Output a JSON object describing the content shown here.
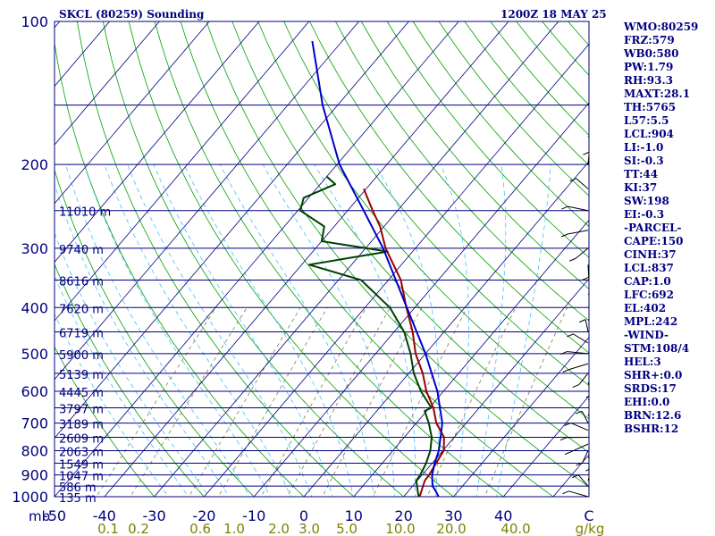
{
  "header": {
    "station": "SKCL (80259) Sounding",
    "time": "1200Z 18 MAY 25"
  },
  "indices": [
    "WMO:80259",
    "FRZ:579",
    "WB0:580",
    "PW:1.79",
    "RH:93.3",
    "MAXT:28.1",
    "TH:5765",
    "L57:5.5",
    "LCL:904",
    "LI:-1.0",
    "SI:-0.3",
    "TT:44",
    "KI:37",
    "SW:198",
    "EI:-0.3",
    "-PARCEL-",
    "CAPE:150",
    "CINH:37",
    "LCL:837",
    "CAP:1.0",
    "LFC:692",
    "EL:402",
    "MPL:242",
    "-WIND-",
    "STM:108/4",
    "HEL:3",
    "SHR+:0.0",
    "SRDS:17",
    "EHI:0.0",
    "BRN:12.6",
    "BSHR:12"
  ],
  "colors": {
    "isobar": "#000080",
    "skew_isotherm": "#000080",
    "dry_adiabat": "#00a000",
    "moist_adiabat": "#40c0ff",
    "mixing_ratio": "#808040",
    "temperature": "#990000",
    "dewpoint": "#004000",
    "parcel": "#0000cc",
    "wind": "#000000",
    "text": "#000080",
    "mixing_text": "#808000"
  },
  "chart_data": {
    "type": "line",
    "diagram": "skew-T log-p",
    "y_axis": {
      "scale": "log",
      "range_hPa": [
        1000,
        100
      ],
      "unit_label": "mb",
      "pressure_ticks": [
        100,
        200,
        300,
        400,
        500,
        600,
        700,
        800,
        900,
        1000
      ],
      "height_labels": [
        {
          "p": 250,
          "label": "11010 m"
        },
        {
          "p": 300,
          "label": "9740 m"
        },
        {
          "p": 350,
          "label": "8616 m"
        },
        {
          "p": 400,
          "label": "7620 m"
        },
        {
          "p": 450,
          "label": "6719 m"
        },
        {
          "p": 500,
          "label": "5900 m"
        },
        {
          "p": 550,
          "label": "5139 m"
        },
        {
          "p": 600,
          "label": "4445 m"
        },
        {
          "p": 650,
          "label": "3797 m"
        },
        {
          "p": 700,
          "label": "3189 m"
        },
        {
          "p": 750,
          "label": "2609 m"
        },
        {
          "p": 800,
          "label": "2063 m"
        },
        {
          "p": 850,
          "label": "1549 m"
        },
        {
          "p": 900,
          "label": "1047 m"
        },
        {
          "p": 950,
          "label": "586 m"
        },
        {
          "p": 1000,
          "label": "135 m"
        }
      ]
    },
    "x_axis": {
      "unit": "C",
      "unit_label": "C",
      "range": [
        -50,
        50
      ],
      "ticks": [
        -50,
        -40,
        -30,
        -20,
        -10,
        0,
        10,
        20,
        30,
        40
      ]
    },
    "mixing_ratio_labels": [
      "0.1",
      "0.2",
      "0.6",
      "1.0",
      "2.0",
      "3.0",
      "5.0",
      "10.0",
      "20.0",
      "40.0",
      "g/kg"
    ],
    "mixing_ratio_values": [
      0.1,
      0.2,
      0.6,
      1.0,
      2.0,
      3.0,
      5.0,
      10.0,
      20.0,
      40.0
    ],
    "series": [
      {
        "key": "temperature",
        "points": [
          [
            1000,
            23.2
          ],
          [
            925,
            21.5
          ],
          [
            900,
            21.4
          ],
          [
            850,
            20.8
          ],
          [
            800,
            20.2
          ],
          [
            750,
            18.0
          ],
          [
            700,
            14.0
          ],
          [
            650,
            10.8
          ],
          [
            600,
            6.6
          ],
          [
            550,
            2.8
          ],
          [
            500,
            -2.0
          ],
          [
            450,
            -6.3
          ],
          [
            400,
            -11.7
          ],
          [
            350,
            -17.5
          ],
          [
            300,
            -26.0
          ],
          [
            270,
            -30.8
          ],
          [
            250,
            -35.0
          ],
          [
            225,
            -40.5
          ]
        ]
      },
      {
        "key": "dewpoint",
        "points": [
          [
            1000,
            23.0
          ],
          [
            925,
            19.8
          ],
          [
            900,
            19.6
          ],
          [
            850,
            18.8
          ],
          [
            800,
            17.5
          ],
          [
            750,
            15.5
          ],
          [
            700,
            12.5
          ],
          [
            660,
            9.6
          ],
          [
            650,
            10.4
          ],
          [
            600,
            5.5
          ],
          [
            550,
            1.0
          ],
          [
            500,
            -3.0
          ],
          [
            450,
            -8.0
          ],
          [
            400,
            -15.0
          ],
          [
            350,
            -25.5
          ],
          [
            325,
            -38.5
          ],
          [
            305,
            -25.0
          ],
          [
            290,
            -40.0
          ],
          [
            270,
            -42.0
          ],
          [
            250,
            -49.5
          ],
          [
            235,
            -51.0
          ],
          [
            220,
            -47.0
          ],
          [
            212,
            -50.0
          ]
        ]
      },
      {
        "key": "parcel",
        "points": [
          [
            1000,
            27.0
          ],
          [
            975,
            25.6
          ],
          [
            950,
            24.0
          ],
          [
            925,
            23.0
          ],
          [
            900,
            22.0
          ],
          [
            850,
            20.5
          ],
          [
            800,
            19.2
          ],
          [
            700,
            15.2
          ],
          [
            600,
            8.8
          ],
          [
            500,
            0.0
          ],
          [
            400,
            -11.6
          ],
          [
            300,
            -26.5
          ],
          [
            250,
            -36.8
          ],
          [
            200,
            -49.5
          ],
          [
            150,
            -63.0
          ],
          [
            110,
            -76.0
          ]
        ]
      }
    ]
  }
}
